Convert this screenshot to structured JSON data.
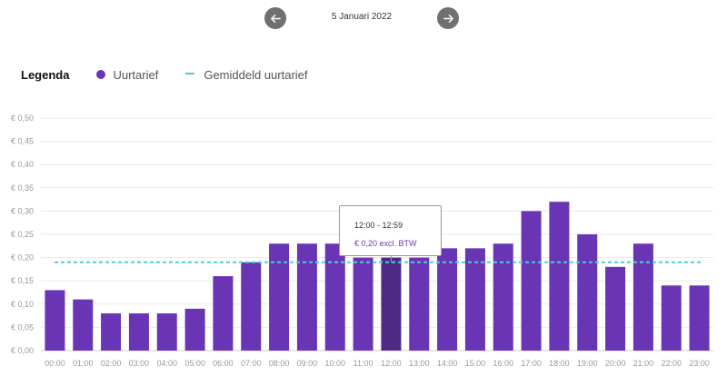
{
  "nav": {
    "prev_icon": "arrow-left-icon",
    "next_icon": "arrow-right-icon",
    "date": "5 Januari 2022"
  },
  "legend": {
    "title": "Legenda",
    "items": [
      {
        "label": "Uurtarief",
        "color": "#6a35b4",
        "icon": "dot"
      },
      {
        "label": "Gemiddeld uurtarief",
        "color": "#4ecbd9",
        "icon": "dashed-line"
      }
    ]
  },
  "chart_data": {
    "type": "bar",
    "categories": [
      "00:00",
      "01:00",
      "02:00",
      "03:00",
      "04:00",
      "05:00",
      "06:00",
      "07:00",
      "08:00",
      "09:00",
      "10:00",
      "11:00",
      "12:00",
      "13:00",
      "14:00",
      "15:00",
      "16:00",
      "17:00",
      "18:00",
      "19:00",
      "20:00",
      "21:00",
      "22:00",
      "23:00"
    ],
    "series": [
      {
        "name": "Uurtarief",
        "color": "#6a35b4",
        "values": [
          0.13,
          0.11,
          0.08,
          0.08,
          0.08,
          0.09,
          0.16,
          0.19,
          0.23,
          0.23,
          0.23,
          0.2,
          0.2,
          0.2,
          0.22,
          0.22,
          0.23,
          0.3,
          0.32,
          0.25,
          0.18,
          0.23,
          0.14,
          0.14
        ]
      }
    ],
    "average": {
      "name": "Gemiddeld uurtarief",
      "value": 0.19,
      "color": "#4ecbd9",
      "style": "dashed"
    },
    "highlight_index": 12,
    "highlight_color": "#4e2a85",
    "yticks": [
      "€ 0,00",
      "€ 0,05",
      "€ 0,10",
      "€ 0,15",
      "€ 0,20",
      "€ 0,25",
      "€ 0,30",
      "€ 0,35",
      "€ 0,40",
      "€ 0,45",
      "€ 0,50"
    ],
    "ylim": [
      0,
      0.5
    ],
    "grid": true,
    "legend_position": "top-left",
    "tooltip": {
      "time": "12:00 - 12:59",
      "price": "€ 0,20 excl. BTW"
    }
  }
}
